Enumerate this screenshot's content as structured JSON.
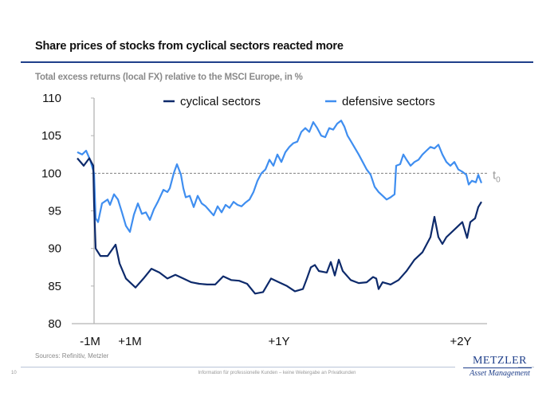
{
  "header": {
    "title": "Share prices of stocks from cyclical sectors reacted more",
    "subtitle": "Total excess returns (local FX) relative to the MSCI Europe, in %"
  },
  "footer": {
    "sources": "Sources: Refinitiv, Metzler",
    "page_number": "10",
    "disclaimer": "Information für professionelle Kunden – keine Weitergabe an Privatkunden",
    "logo_main": "METZLER",
    "logo_sub": "Asset Management"
  },
  "colors": {
    "cyclical": "#0d2a6b",
    "defensive": "#3f8ef0",
    "reference": "#808080",
    "axis": "#b3b3b3"
  },
  "chart_data": {
    "type": "line",
    "title": "Share prices of stocks from cyclical sectors reacted more",
    "xlabel": "",
    "ylabel": "Total excess returns (local FX) relative to the MSCI Europe, in %",
    "ylim": [
      80,
      110
    ],
    "yticks": [
      80,
      85,
      90,
      95,
      100,
      105,
      110
    ],
    "xlim": [
      0,
      507
    ],
    "x_unit": "trading days from start of window",
    "xticks": [
      {
        "label": "-1M",
        "x": 16
      },
      {
        "label": "+1M",
        "x": 66
      },
      {
        "label": "+1Y",
        "x": 253
      },
      {
        "label": "+2Y",
        "x": 481
      }
    ],
    "event_x": 21,
    "reference_line": {
      "y": 100,
      "label": "t",
      "label_sub": "0",
      "style": "dashed"
    },
    "legend_position": "top",
    "grid": false,
    "series": [
      {
        "name": "cyclical sectors",
        "x": [
          0,
          8,
          15,
          20,
          21,
          23,
          29,
          38,
          48,
          53,
          61,
          73,
          83,
          93,
          103,
          113,
          123,
          133,
          143,
          153,
          163,
          173,
          183,
          193,
          203,
          213,
          223,
          233,
          243,
          253,
          263,
          273,
          283,
          288,
          293,
          298,
          303,
          313,
          318,
          323,
          328,
          333,
          343,
          353,
          363,
          371,
          375,
          378,
          383,
          393,
          403,
          413,
          423,
          433,
          443,
          448,
          453,
          458,
          463,
          473,
          483,
          489,
          493,
          499,
          503,
          507
        ],
        "values": [
          102,
          101,
          102,
          101,
          96,
          90,
          89,
          89,
          90.5,
          88,
          86,
          84.8,
          86,
          87.3,
          86.8,
          86,
          86.5,
          86,
          85.5,
          85.3,
          85.2,
          85.2,
          86.3,
          85.8,
          85.7,
          85.3,
          84,
          84.2,
          86,
          85.5,
          85,
          84.3,
          84.6,
          86,
          87.5,
          87.8,
          87,
          86.8,
          88.2,
          86.4,
          88.5,
          87,
          85.8,
          85.4,
          85.5,
          86.2,
          86,
          84.6,
          85.5,
          85.2,
          85.8,
          87,
          88.5,
          89.5,
          91.5,
          94.2,
          91.5,
          90.6,
          91.5,
          92.5,
          93.5,
          91.4,
          93.5,
          94,
          95.5,
          96.2
        ]
      },
      {
        "name": "defensive sectors",
        "x": [
          0,
          6,
          11,
          16,
          21,
          23,
          26,
          31,
          38,
          41,
          46,
          51,
          56,
          61,
          66,
          71,
          76,
          81,
          86,
          91,
          96,
          101,
          108,
          113,
          116,
          121,
          125,
          130,
          133,
          136,
          141,
          146,
          151,
          156,
          161,
          166,
          171,
          176,
          181,
          186,
          191,
          196,
          201,
          206,
          211,
          216,
          221,
          226,
          231,
          236,
          241,
          246,
          251,
          256,
          261,
          266,
          271,
          276,
          281,
          286,
          291,
          296,
          301,
          306,
          311,
          316,
          321,
          326,
          331,
          335,
          339,
          343,
          348,
          353,
          358,
          363,
          368,
          373,
          378,
          383,
          388,
          393,
          398,
          400,
          405,
          409,
          413,
          418,
          423,
          428,
          433,
          438,
          443,
          448,
          453,
          458,
          463,
          468,
          473,
          478,
          483,
          488,
          491,
          495,
          500,
          503,
          507
        ],
        "values": [
          102.8,
          102.5,
          103,
          101.8,
          100,
          94,
          93.5,
          96,
          96.5,
          95.8,
          97.2,
          96.5,
          94.8,
          93,
          92.2,
          94.5,
          96,
          94.6,
          94.8,
          93.8,
          95.2,
          96.2,
          97.8,
          97.5,
          98,
          100,
          101.2,
          99.8,
          98,
          96.8,
          97,
          95.5,
          97,
          96,
          95.6,
          95,
          94.4,
          95.6,
          94.8,
          95.8,
          95.4,
          96.2,
          95.8,
          95.6,
          96.1,
          96.5,
          97.5,
          99,
          100,
          100.5,
          101.8,
          101,
          102.5,
          101.5,
          102.8,
          103.5,
          104,
          104.2,
          105.5,
          106,
          105.5,
          106.8,
          106,
          105,
          104.8,
          106,
          105.8,
          106.6,
          107,
          106.2,
          105,
          104.3,
          103.4,
          102.5,
          101.5,
          100.5,
          99.8,
          98.2,
          97.5,
          97,
          96.5,
          96.8,
          97.2,
          101,
          101.2,
          102.5,
          101.8,
          101,
          101.5,
          101.8,
          102.5,
          103,
          103.5,
          103.3,
          103.8,
          102.5,
          101.5,
          101,
          101.5,
          100.5,
          100.2,
          99.8,
          98.5,
          99,
          98.8,
          99.8,
          98.7
        ]
      }
    ]
  }
}
